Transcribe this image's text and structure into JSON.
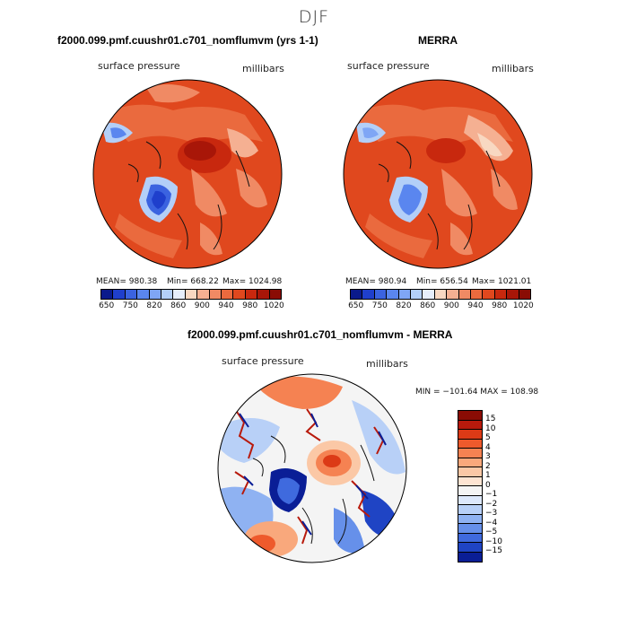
{
  "season": "DJF",
  "panels": [
    {
      "title": "f2000.099.pmf.cuushr01.c701_nomflumvm (yrs 1-1)",
      "variable": "surface pressure",
      "units": "millibars",
      "mean_label": "MEAN= 980.38",
      "min_label": "Min= 668.22",
      "max_label": "Max= 1024.98",
      "mean": 980.38,
      "min": 668.22,
      "max": 1024.98
    },
    {
      "title": "MERRA",
      "variable": "surface pressure",
      "units": "millibars",
      "mean_label": "MEAN= 980.94",
      "min_label": "Min= 656.54",
      "max_label": "Max= 1021.01",
      "mean": 980.94,
      "min": 656.54,
      "max": 1021.01
    }
  ],
  "colorbar": {
    "colors": [
      "#0a1a8c",
      "#1f3fcc",
      "#3b63e0",
      "#5a86ef",
      "#7fa6f5",
      "#b3cff8",
      "#e6eefb",
      "#f8d8c2",
      "#f5b092",
      "#f08a64",
      "#ea6a3e",
      "#e0481e",
      "#c8280e",
      "#a81608",
      "#8a0c04"
    ],
    "labels": [
      "650",
      "750",
      "820",
      "860",
      "900",
      "940",
      "980",
      "1020"
    ]
  },
  "diff_panel": {
    "title": "f2000.099.pmf.cuushr01.c701_nomflumvm - MERRA",
    "variable": "surface pressure",
    "units": "millibars",
    "minmax_label": "MIN = −101.64 MAX = 108.98",
    "min": -101.64,
    "max": 108.98
  },
  "diff_colorbar": {
    "colors": [
      "#8a0c04",
      "#b81a0c",
      "#dc3a16",
      "#ee5a2c",
      "#f58252",
      "#f9a87c",
      "#fbc8a6",
      "#fde4d2",
      "#f4f4f4",
      "#dde8fb",
      "#b8d0f7",
      "#8fb2f2",
      "#6690ea",
      "#3f6ade",
      "#1f44c4",
      "#0a1e96"
    ],
    "labels": [
      "15",
      "10",
      "5",
      "4",
      "3",
      "2",
      "1",
      "0",
      "−1",
      "−2",
      "−3",
      "−4",
      "−5",
      "−10",
      "−15"
    ]
  }
}
